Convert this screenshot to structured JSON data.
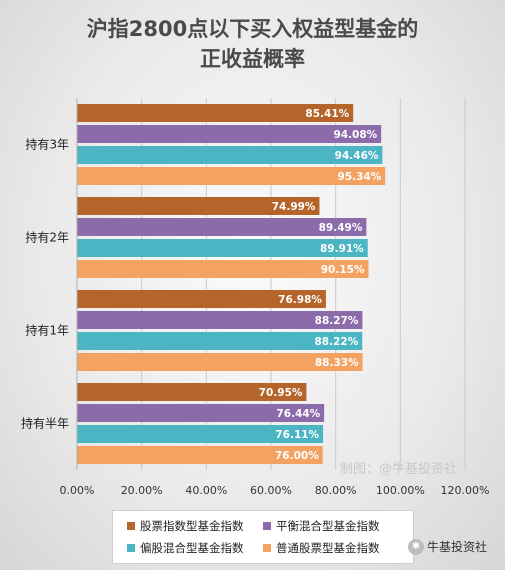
{
  "title": [
    "沪指2800点以下买入权益型基金的",
    "正收益概率"
  ],
  "watermark": "制图：@牛基投资社",
  "brand": {
    "text": "牛基投资社",
    "icon": "wechat-icon"
  },
  "colors": {
    "股票指数型基金指数": "#b5652a",
    "平衡混合型基金指数": "#8c6bab",
    "偏股混合型基金指数": "#4bb5c4",
    "普通股票型基金指数": "#f4a262"
  },
  "chart_data": {
    "type": "bar",
    "orientation": "horizontal",
    "title": "沪指2800点以下买入权益型基金的正收益概率",
    "categories": [
      "持有3年",
      "持有2年",
      "持有1年",
      "持有半年"
    ],
    "series": [
      {
        "name": "股票指数型基金指数",
        "values": [
          85.41,
          74.99,
          76.98,
          70.95
        ],
        "labels": [
          "85.41%",
          "74.99%",
          "76.98%",
          "70.95%"
        ]
      },
      {
        "name": "平衡混合型基金指数",
        "values": [
          94.08,
          89.49,
          88.27,
          76.44
        ],
        "labels": [
          "94.08%",
          "89.49%",
          "88.27%",
          "76.44%"
        ]
      },
      {
        "name": "偏股混合型基金指数",
        "values": [
          94.46,
          89.91,
          88.22,
          76.11
        ],
        "labels": [
          "94.46%",
          "89.91%",
          "88.22%",
          "76.11%"
        ]
      },
      {
        "name": "普通股票型基金指数",
        "values": [
          95.34,
          90.15,
          88.33,
          76.0
        ],
        "labels": [
          "95.34%",
          "90.15%",
          "88.33%",
          "76.00%"
        ]
      }
    ],
    "xlim": [
      0,
      120
    ],
    "xticks": [
      "0.00%",
      "20.00%",
      "40.00%",
      "60.00%",
      "80.00%",
      "100.00%",
      "120.00%"
    ],
    "grid": true,
    "legend_position": "bottom"
  }
}
